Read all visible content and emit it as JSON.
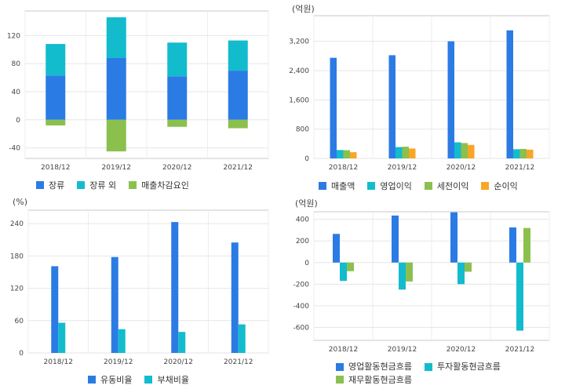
{
  "chart_data": [
    {
      "id": "c1",
      "type": "bar",
      "stacked": true,
      "unit": "",
      "categories": [
        "2018/12",
        "2019/12",
        "2020/12",
        "2021/12"
      ],
      "series": [
        {
          "name": "장류",
          "color": "#2b7be4",
          "values": [
            63,
            88,
            62,
            70
          ]
        },
        {
          "name": "장류 외",
          "color": "#12bccd",
          "values": [
            45,
            58,
            48,
            43
          ]
        },
        {
          "name": "매출차감요인",
          "color": "#8cc04e",
          "values": [
            -8,
            -45,
            -10,
            -12
          ]
        }
      ],
      "yticks": [
        -40,
        0,
        40,
        80,
        120
      ],
      "ylim": [
        -55,
        155
      ],
      "grid": true
    },
    {
      "id": "c2",
      "type": "bar",
      "stacked": false,
      "unit": "(억원)",
      "categories": [
        "2018/12",
        "2019/12",
        "2020/12",
        "2021/12"
      ],
      "series": [
        {
          "name": "매출액",
          "color": "#2b7be4",
          "values": [
            2750,
            2820,
            3200,
            3500
          ]
        },
        {
          "name": "영업이익",
          "color": "#12bccd",
          "values": [
            230,
            310,
            440,
            250
          ]
        },
        {
          "name": "세전이익",
          "color": "#8cc04e",
          "values": [
            225,
            320,
            420,
            260
          ]
        },
        {
          "name": "순이익",
          "color": "#f7a626",
          "values": [
            170,
            270,
            370,
            240
          ]
        }
      ],
      "yticks": [
        0,
        800,
        1600,
        2400,
        3200
      ],
      "ylim": [
        0,
        3900
      ],
      "grid": true
    },
    {
      "id": "c3",
      "type": "bar",
      "stacked": false,
      "unit": "(%)",
      "categories": [
        "2018/12",
        "2019/12",
        "2020/12",
        "2021/12"
      ],
      "series": [
        {
          "name": "유동비율",
          "color": "#2b7be4",
          "values": [
            161,
            178,
            243,
            205
          ]
        },
        {
          "name": "부채비율",
          "color": "#12bccd",
          "values": [
            56,
            44,
            39,
            53
          ]
        }
      ],
      "yticks": [
        0,
        60,
        120,
        180,
        240
      ],
      "ylim": [
        0,
        265
      ],
      "grid": true
    },
    {
      "id": "c4",
      "type": "bar",
      "stacked": false,
      "unit": "(억원)",
      "categories": [
        "2018/12",
        "2019/12",
        "2020/12",
        "2021/12"
      ],
      "series": [
        {
          "name": "영업활동현금흐름",
          "color": "#2b7be4",
          "values": [
            265,
            435,
            465,
            325
          ]
        },
        {
          "name": "투자활동현금흐름",
          "color": "#12bccd",
          "values": [
            -170,
            -250,
            -200,
            -630
          ]
        },
        {
          "name": "재무활동현금흐름",
          "color": "#8cc04e",
          "values": [
            -80,
            -175,
            -85,
            320
          ]
        }
      ],
      "yticks": [
        -600,
        -400,
        -200,
        0,
        200,
        400
      ],
      "ylim": [
        -720,
        470
      ],
      "grid": true
    }
  ]
}
